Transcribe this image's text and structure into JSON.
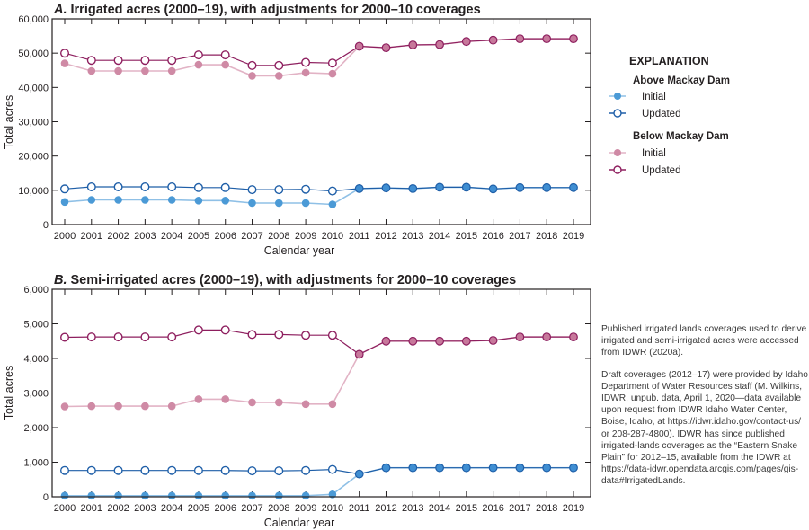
{
  "chart_data": [
    {
      "type": "line",
      "panel": "A",
      "title_prefix": "A.",
      "title": "Irrigated acres (2000–19), with adjustments for 2000–10 coverages",
      "xlabel": "Calendar year",
      "ylabel": "Total acres",
      "ylim": [
        0,
        60000
      ],
      "yticks": [
        0,
        10000,
        20000,
        30000,
        40000,
        50000,
        60000
      ],
      "ytick_labels": [
        "0",
        "10,000",
        "20,000",
        "30,000",
        "40,000",
        "50,000",
        "60,000"
      ],
      "x": [
        "2000",
        "2001",
        "2002",
        "2003",
        "2004",
        "2005",
        "2006",
        "2007",
        "2008",
        "2009",
        "2010",
        "2011",
        "2012",
        "2013",
        "2014",
        "2015",
        "2016",
        "2017",
        "2018",
        "2019"
      ],
      "grid": false,
      "series": [
        {
          "name": "Below Mackay Dam Initial",
          "group": "Below Mackay Dam",
          "kind": "initial",
          "values": [
            47000,
            44800,
            44800,
            44800,
            44800,
            46600,
            46600,
            43400,
            43400,
            44300,
            44000,
            52000,
            51600,
            52400,
            52500,
            53400,
            53800,
            54200,
            54200,
            54200
          ]
        },
        {
          "name": "Below Mackay Dam Updated",
          "group": "Below Mackay Dam",
          "kind": "updated",
          "values": [
            50000,
            47900,
            47900,
            47900,
            47900,
            49500,
            49500,
            46400,
            46400,
            47300,
            47100,
            52000,
            51600,
            52400,
            52500,
            53400,
            53800,
            54200,
            54200,
            54200
          ]
        },
        {
          "name": "Above Mackay Dam Initial",
          "group": "Above Mackay Dam",
          "kind": "initial",
          "values": [
            6600,
            7200,
            7200,
            7200,
            7200,
            7000,
            7000,
            6300,
            6300,
            6300,
            5900,
            10500,
            10700,
            10500,
            10900,
            10900,
            10400,
            10800,
            10800,
            10800
          ]
        },
        {
          "name": "Above Mackay Dam Updated",
          "group": "Above Mackay Dam",
          "kind": "updated",
          "values": [
            10400,
            11000,
            11000,
            11000,
            11000,
            10800,
            10800,
            10200,
            10200,
            10300,
            9800,
            10500,
            10700,
            10500,
            10900,
            10900,
            10400,
            10800,
            10800,
            10800
          ]
        }
      ]
    },
    {
      "type": "line",
      "panel": "B",
      "title_prefix": "B.",
      "title": "Semi-irrigated acres (2000–19), with adjustments for 2000–10 coverages",
      "xlabel": "Calendar year",
      "ylabel": "Total acres",
      "ylim": [
        0,
        6000
      ],
      "yticks": [
        0,
        1000,
        2000,
        3000,
        4000,
        5000,
        6000
      ],
      "ytick_labels": [
        "0",
        "1,000",
        "2,000",
        "3,000",
        "4,000",
        "5,000",
        "6,000"
      ],
      "x": [
        "2000",
        "2001",
        "2002",
        "2003",
        "2004",
        "2005",
        "2006",
        "2007",
        "2008",
        "2009",
        "2010",
        "2011",
        "2012",
        "2013",
        "2014",
        "2015",
        "2016",
        "2017",
        "2018",
        "2019"
      ],
      "grid": false,
      "series": [
        {
          "name": "Below Mackay Dam Initial",
          "group": "Below Mackay Dam",
          "kind": "initial",
          "values": [
            2610,
            2620,
            2620,
            2620,
            2620,
            2820,
            2820,
            2730,
            2730,
            2680,
            2680,
            4120,
            4500,
            4500,
            4500,
            4500,
            4520,
            4620,
            4620,
            4620
          ]
        },
        {
          "name": "Below Mackay Dam Updated",
          "group": "Below Mackay Dam",
          "kind": "updated",
          "values": [
            4610,
            4620,
            4620,
            4620,
            4620,
            4820,
            4820,
            4690,
            4690,
            4670,
            4670,
            4120,
            4500,
            4500,
            4500,
            4500,
            4520,
            4620,
            4620,
            4620
          ]
        },
        {
          "name": "Above Mackay Dam Initial",
          "group": "Above Mackay Dam",
          "kind": "initial",
          "values": [
            30,
            30,
            30,
            30,
            30,
            30,
            30,
            30,
            30,
            30,
            70,
            660,
            840,
            840,
            840,
            840,
            840,
            840,
            840,
            840
          ]
        },
        {
          "name": "Above Mackay Dam Updated",
          "group": "Above Mackay Dam",
          "kind": "updated",
          "values": [
            760,
            760,
            760,
            760,
            760,
            760,
            760,
            750,
            750,
            760,
            790,
            660,
            840,
            840,
            840,
            840,
            840,
            840,
            840,
            840
          ]
        }
      ]
    }
  ],
  "colors": {
    "above_initial": "#4b9ad6",
    "above_initial_line": "#8fc0e6",
    "above_updated": "#1f5fa8",
    "above_merged_fill": "#3f8ed2",
    "below_initial": "#cf8aa5",
    "below_initial_line": "#e2b3c5",
    "below_updated": "#8e1f5f",
    "below_merged_fill": "#c7789b",
    "axis": "#231f20"
  },
  "legend": {
    "heading": "EXPLANATION",
    "groups": [
      {
        "label": "Above Mackay Dam",
        "items": [
          {
            "label": "Initial",
            "key": "above_initial"
          },
          {
            "label": "Updated",
            "key": "above_updated"
          }
        ]
      },
      {
        "label": "Below Mackay Dam",
        "items": [
          {
            "label": "Initial",
            "key": "below_initial"
          },
          {
            "label": "Updated",
            "key": "below_updated"
          }
        ]
      }
    ]
  },
  "notes": [
    "Published irrigated lands coverages used to derive irrigated and semi-irrigated acres were accessed from IDWR (2020a).",
    "Draft coverages (2012–17) were provided by Idaho Department of Water Resources staff (M. Wilkins, IDWR, unpub. data, April 1, 2020—data available upon request from IDWR Idaho Water Center, Boise, Idaho, at https://idwr.idaho.gov/contact-us/ or 208-287-4800). IDWR has since published irrigated-lands coverages as the “Eastern Snake Plain” for 2012–15, available from the IDWR at https://data-idwr.opendata.arcgis.com/pages/gis-data#IrrigatedLands."
  ]
}
